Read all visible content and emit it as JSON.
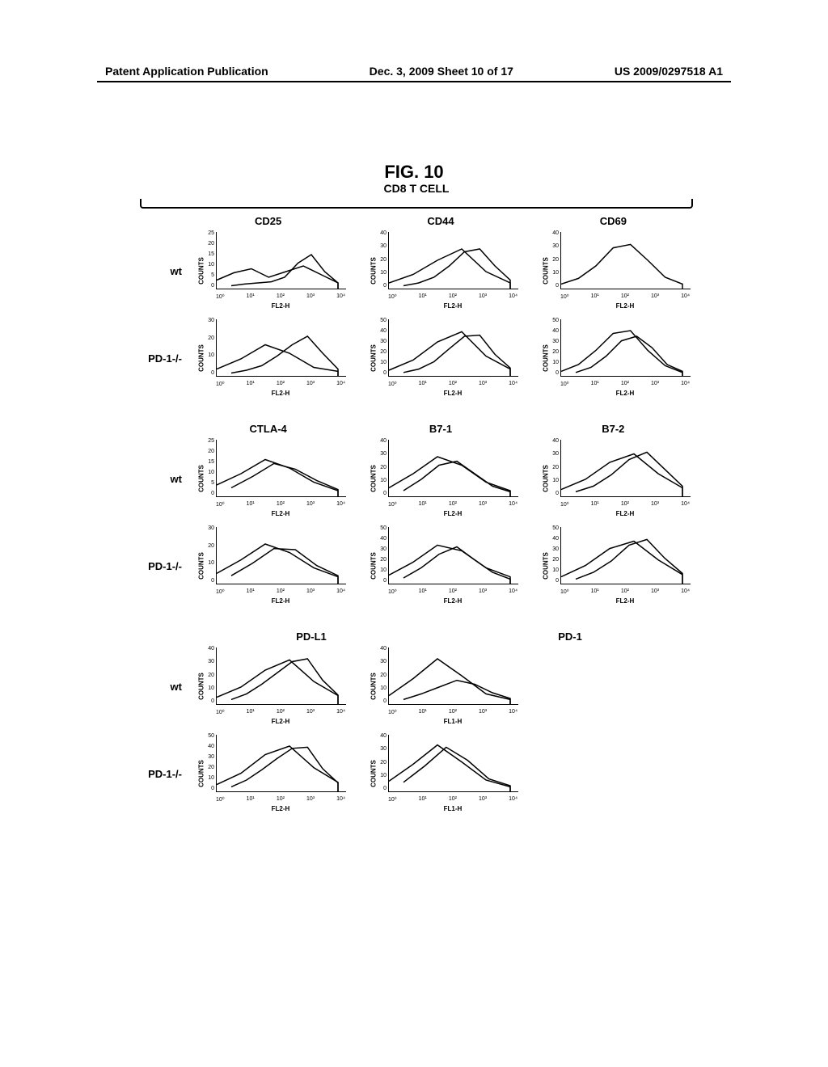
{
  "header": {
    "left": "Patent Application Publication",
    "center": "Dec. 3, 2009  Sheet 10 of 17",
    "right": "US 2009/0297518 A1"
  },
  "figure_title": "FIG. 10",
  "cell_type_label": "CD8 T CELL",
  "sections": [
    {
      "columns": [
        "CD25",
        "CD44",
        "CD69"
      ],
      "rows": [
        {
          "label": "wt",
          "panels": [
            {
              "ymax": "25",
              "yticks": [
                "0",
                "5",
                "10",
                "15",
                "20",
                "25"
              ],
              "xlabel": "FL2-H",
              "curves": [
                [
                  15,
                  28,
                  35,
                  20,
                  30,
                  40,
                  25,
                  10
                ],
                [
                  5,
                  8,
                  10,
                  12,
                  20,
                  45,
                  60,
                  30,
                  10
                ]
              ]
            },
            {
              "ymax": "40",
              "yticks": [
                "0",
                "10",
                "20",
                "30",
                "40"
              ],
              "xlabel": "FL2-H",
              "curves": [
                [
                  10,
                  25,
                  50,
                  70,
                  30,
                  10
                ],
                [
                  5,
                  10,
                  20,
                  40,
                  65,
                  70,
                  40,
                  15
                ]
              ]
            },
            {
              "ymax": "40",
              "yticks": [
                "0",
                "10",
                "20",
                "30",
                "40"
              ],
              "xlabel": "FL2-H",
              "curves": [
                [
                  8,
                  18,
                  40,
                  72,
                  78,
                  50,
                  20,
                  8
                ]
              ]
            }
          ]
        },
        {
          "label": "PD-1-/-",
          "panels": [
            {
              "ymax": "30",
              "yticks": [
                "0",
                "10",
                "20",
                "30"
              ],
              "xlabel": "FL2-H",
              "curves": [
                [
                  12,
                  30,
                  55,
                  40,
                  15,
                  8
                ],
                [
                  5,
                  10,
                  18,
                  35,
                  55,
                  70,
                  40,
                  12
                ]
              ]
            },
            {
              "ymax": "50",
              "yticks": [
                "0",
                "10",
                "20",
                "30",
                "40",
                "50"
              ],
              "xlabel": "FL2-H",
              "curves": [
                [
                  10,
                  28,
                  60,
                  78,
                  35,
                  12
                ],
                [
                  6,
                  12,
                  25,
                  48,
                  70,
                  72,
                  38,
                  14
                ]
              ]
            },
            {
              "ymax": "50",
              "yticks": [
                "0",
                "10",
                "20",
                "30",
                "40",
                "50"
              ],
              "xlabel": "FL2-H",
              "curves": [
                [
                  8,
                  20,
                  45,
                  75,
                  80,
                  45,
                  18,
                  6
                ],
                [
                  6,
                  15,
                  35,
                  62,
                  70,
                  50,
                  20,
                  8
                ]
              ]
            }
          ]
        }
      ]
    },
    {
      "columns": [
        "CTLA-4",
        "B7-1",
        "B7-2"
      ],
      "rows": [
        {
          "label": "wt",
          "panels": [
            {
              "ymax": "25",
              "yticks": [
                "0",
                "5",
                "10",
                "15",
                "20",
                "25"
              ],
              "xlabel": "FL2-H",
              "curves": [
                [
                  20,
                  40,
                  65,
                  50,
                  25,
                  10
                ],
                [
                  15,
                  35,
                  58,
                  48,
                  28,
                  12
                ]
              ]
            },
            {
              "ymax": "40",
              "yticks": [
                "0",
                "10",
                "20",
                "30",
                "40"
              ],
              "xlabel": "FL2-H",
              "curves": [
                [
                  15,
                  40,
                  70,
                  55,
                  25,
                  10
                ],
                [
                  10,
                  30,
                  55,
                  62,
                  40,
                  18,
                  8
                ]
              ]
            },
            {
              "ymax": "40",
              "yticks": [
                "0",
                "10",
                "20",
                "30",
                "40"
              ],
              "xlabel": "FL2-H",
              "curves": [
                [
                  12,
                  30,
                  60,
                  75,
                  40,
                  15
                ],
                [
                  8,
                  18,
                  38,
                  65,
                  78,
                  48,
                  18
                ]
              ]
            }
          ]
        },
        {
          "label": "PD-1-/-",
          "panels": [
            {
              "ymax": "30",
              "yticks": [
                "0",
                "10",
                "20",
                "30"
              ],
              "xlabel": "FL2-H",
              "curves": [
                [
                  18,
                  42,
                  70,
                  55,
                  28,
                  12
                ],
                [
                  14,
                  36,
                  62,
                  60,
                  32,
                  14
                ]
              ]
            },
            {
              "ymax": "50",
              "yticks": [
                "0",
                "10",
                "20",
                "30",
                "40",
                "50"
              ],
              "xlabel": "FL2-H",
              "curves": [
                [
                  15,
                  38,
                  68,
                  58,
                  28,
                  12
                ],
                [
                  10,
                  28,
                  52,
                  65,
                  42,
                  20,
                  8
                ]
              ]
            },
            {
              "ymax": "50",
              "yticks": [
                "0",
                "10",
                "20",
                "30",
                "40",
                "50"
              ],
              "xlabel": "FL2-H",
              "curves": [
                [
                  12,
                  32,
                  62,
                  75,
                  42,
                  16
                ],
                [
                  8,
                  20,
                  40,
                  68,
                  78,
                  45,
                  18
                ]
              ]
            }
          ]
        }
      ]
    },
    {
      "columns": [
        "PD-L1",
        "PD-1"
      ],
      "rows": [
        {
          "label": "wt",
          "panels": [
            {
              "ymax": "40",
              "yticks": [
                "0",
                "10",
                "20",
                "30",
                "40"
              ],
              "xlabel": "FL2-H",
              "curves": [
                [
                  12,
                  30,
                  60,
                  78,
                  40,
                  15
                ],
                [
                  8,
                  18,
                  35,
                  55,
                  75,
                  80,
                  42,
                  16
                ]
              ]
            },
            {
              "ymax": "40",
              "yticks": [
                "0",
                "10",
                "20",
                "30",
                "40"
              ],
              "xlabel": "FL1-H",
              "curves": [
                [
                  15,
                  45,
                  80,
                  50,
                  18,
                  8
                ],
                [
                  8,
                  18,
                  30,
                  42,
                  35,
                  20,
                  10
                ]
              ]
            }
          ]
        },
        {
          "label": "PD-1-/-",
          "panels": [
            {
              "ymax": "50",
              "yticks": [
                "0",
                "10",
                "20",
                "30",
                "40",
                "50"
              ],
              "xlabel": "FL2-H",
              "curves": [
                [
                  12,
                  32,
                  65,
                  80,
                  42,
                  16
                ],
                [
                  8,
                  20,
                  38,
                  58,
                  76,
                  78,
                  40,
                  15
                ]
              ]
            },
            {
              "ymax": "40",
              "yticks": [
                "0",
                "10",
                "20",
                "30",
                "40"
              ],
              "xlabel": "FL1-H",
              "curves": [
                [
                  18,
                  48,
                  82,
                  52,
                  20,
                  8
                ],
                [
                  16,
                  45,
                  78,
                  55,
                  22,
                  10
                ]
              ]
            }
          ]
        }
      ]
    }
  ],
  "xticks": [
    "10⁰",
    "10¹",
    "10²",
    "10³",
    "10⁴"
  ],
  "y_axis_label": "COUNTS"
}
